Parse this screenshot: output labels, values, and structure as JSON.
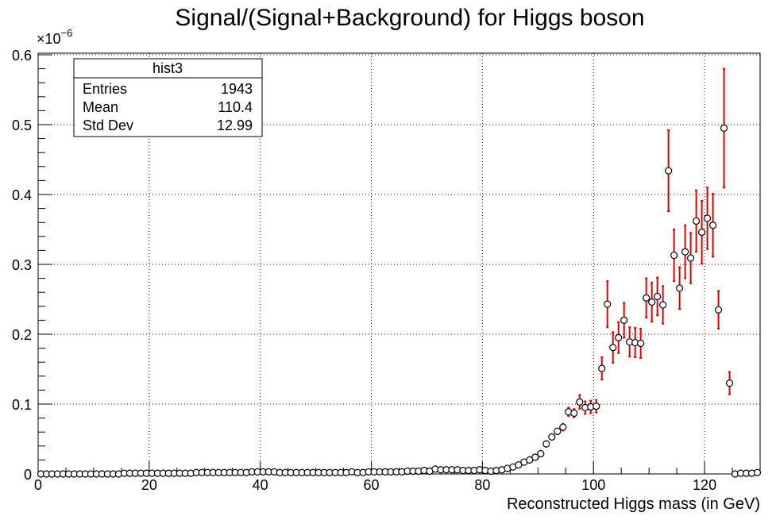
{
  "chart_data": {
    "type": "scatter",
    "title": "Signal/(Signal+Background) for Higgs boson",
    "xlabel": "Reconstructed Higgs mass (in GeV)",
    "ylabel": "",
    "y_exponent_label": "×10",
    "y_exponent_power": "−6",
    "xlim": [
      0,
      130
    ],
    "ylim": [
      0,
      0.61
    ],
    "x_ticks": [
      0,
      20,
      40,
      60,
      80,
      100,
      120
    ],
    "y_ticks": [
      0,
      0.1,
      0.2,
      0.3,
      0.4,
      0.5,
      0.6
    ],
    "x_tick_labels": [
      "0",
      "20",
      "40",
      "60",
      "80",
      "100",
      "120"
    ],
    "y_tick_labels": [
      "0",
      "0.1",
      "0.2",
      "0.3",
      "0.4",
      "0.5",
      "0.6"
    ],
    "grid": true,
    "marker_color": "#000000",
    "error_bar_color": "#dd0000",
    "stats_box": {
      "title": "hist3",
      "placement": "top-left",
      "rows": [
        {
          "label": "Entries",
          "value": "1943"
        },
        {
          "label": "Mean",
          "value": "110.4"
        },
        {
          "label": "Std Dev",
          "value": "12.99"
        }
      ]
    },
    "points": [
      {
        "x": 0.5,
        "y": 0,
        "err": 0
      },
      {
        "x": 1.5,
        "y": 0,
        "err": 0
      },
      {
        "x": 2.5,
        "y": 0,
        "err": 0
      },
      {
        "x": 3.5,
        "y": 0,
        "err": 0
      },
      {
        "x": 4.5,
        "y": 0,
        "err": 0
      },
      {
        "x": 5.5,
        "y": 0,
        "err": 0
      },
      {
        "x": 6.5,
        "y": 0,
        "err": 0
      },
      {
        "x": 7.5,
        "y": 0,
        "err": 0
      },
      {
        "x": 8.5,
        "y": 0,
        "err": 0
      },
      {
        "x": 9.5,
        "y": 0,
        "err": 0
      },
      {
        "x": 10.5,
        "y": 0,
        "err": 0
      },
      {
        "x": 11.5,
        "y": 0,
        "err": 0
      },
      {
        "x": 12.5,
        "y": 0,
        "err": 0
      },
      {
        "x": 13.5,
        "y": 0,
        "err": 0
      },
      {
        "x": 14.5,
        "y": 0,
        "err": 0
      },
      {
        "x": 15.5,
        "y": 0.001,
        "err": 0
      },
      {
        "x": 16.5,
        "y": 0.001,
        "err": 0
      },
      {
        "x": 17.5,
        "y": 0.001,
        "err": 0
      },
      {
        "x": 18.5,
        "y": 0.001,
        "err": 0
      },
      {
        "x": 19.5,
        "y": 0.001,
        "err": 0
      },
      {
        "x": 20.5,
        "y": 0.001,
        "err": 0
      },
      {
        "x": 21.5,
        "y": 0.001,
        "err": 0
      },
      {
        "x": 22.5,
        "y": 0.001,
        "err": 0
      },
      {
        "x": 23.5,
        "y": 0.001,
        "err": 0
      },
      {
        "x": 24.5,
        "y": 0.001,
        "err": 0
      },
      {
        "x": 25.5,
        "y": 0.001,
        "err": 0
      },
      {
        "x": 26.5,
        "y": 0.001,
        "err": 0
      },
      {
        "x": 27.5,
        "y": 0.001,
        "err": 0
      },
      {
        "x": 28.5,
        "y": 0.002,
        "err": 0
      },
      {
        "x": 29.5,
        "y": 0.002,
        "err": 0
      },
      {
        "x": 30.5,
        "y": 0.002,
        "err": 0
      },
      {
        "x": 31.5,
        "y": 0.002,
        "err": 0
      },
      {
        "x": 32.5,
        "y": 0.002,
        "err": 0
      },
      {
        "x": 33.5,
        "y": 0.002,
        "err": 0
      },
      {
        "x": 34.5,
        "y": 0.002,
        "err": 0
      },
      {
        "x": 35.5,
        "y": 0.002,
        "err": 0
      },
      {
        "x": 36.5,
        "y": 0.002,
        "err": 0
      },
      {
        "x": 37.5,
        "y": 0.002,
        "err": 0
      },
      {
        "x": 38.5,
        "y": 0.003,
        "err": 0
      },
      {
        "x": 39.5,
        "y": 0.003,
        "err": 0
      },
      {
        "x": 40.5,
        "y": 0.003,
        "err": 0
      },
      {
        "x": 41.5,
        "y": 0.003,
        "err": 0
      },
      {
        "x": 42.5,
        "y": 0.003,
        "err": 0
      },
      {
        "x": 43.5,
        "y": 0.002,
        "err": 0
      },
      {
        "x": 44.5,
        "y": 0.002,
        "err": 0
      },
      {
        "x": 45.5,
        "y": 0.002,
        "err": 0
      },
      {
        "x": 46.5,
        "y": 0.002,
        "err": 0
      },
      {
        "x": 47.5,
        "y": 0.002,
        "err": 0
      },
      {
        "x": 48.5,
        "y": 0.002,
        "err": 0
      },
      {
        "x": 49.5,
        "y": 0.002,
        "err": 0
      },
      {
        "x": 50.5,
        "y": 0.002,
        "err": 0
      },
      {
        "x": 51.5,
        "y": 0.002,
        "err": 0
      },
      {
        "x": 52.5,
        "y": 0.002,
        "err": 0
      },
      {
        "x": 53.5,
        "y": 0.002,
        "err": 0
      },
      {
        "x": 54.5,
        "y": 0.002,
        "err": 0
      },
      {
        "x": 55.5,
        "y": 0.002,
        "err": 0
      },
      {
        "x": 56.5,
        "y": 0.003,
        "err": 0
      },
      {
        "x": 57.5,
        "y": 0.002,
        "err": 0
      },
      {
        "x": 58.5,
        "y": 0.002,
        "err": 0
      },
      {
        "x": 59.5,
        "y": 0.003,
        "err": 0
      },
      {
        "x": 60.5,
        "y": 0.003,
        "err": 0
      },
      {
        "x": 61.5,
        "y": 0.003,
        "err": 0
      },
      {
        "x": 62.5,
        "y": 0.003,
        "err": 0
      },
      {
        "x": 63.5,
        "y": 0.003,
        "err": 0
      },
      {
        "x": 64.5,
        "y": 0.003,
        "err": 0
      },
      {
        "x": 65.5,
        "y": 0.003,
        "err": 0
      },
      {
        "x": 66.5,
        "y": 0.004,
        "err": 0
      },
      {
        "x": 67.5,
        "y": 0.004,
        "err": 0
      },
      {
        "x": 68.5,
        "y": 0.004,
        "err": 0
      },
      {
        "x": 69.5,
        "y": 0.005,
        "err": 0
      },
      {
        "x": 70.5,
        "y": 0.004,
        "err": 0
      },
      {
        "x": 71.5,
        "y": 0.007,
        "err": 0
      },
      {
        "x": 72.5,
        "y": 0.006,
        "err": 0
      },
      {
        "x": 73.5,
        "y": 0.006,
        "err": 0
      },
      {
        "x": 74.5,
        "y": 0.006,
        "err": 0
      },
      {
        "x": 75.5,
        "y": 0.006,
        "err": 0
      },
      {
        "x": 76.5,
        "y": 0.005,
        "err": 0
      },
      {
        "x": 77.5,
        "y": 0.005,
        "err": 0
      },
      {
        "x": 78.5,
        "y": 0.005,
        "err": 0
      },
      {
        "x": 79.5,
        "y": 0.006,
        "err": 0
      },
      {
        "x": 80.5,
        "y": 0.005,
        "err": 0
      },
      {
        "x": 81.5,
        "y": 0.004,
        "err": 0
      },
      {
        "x": 82.5,
        "y": 0.005,
        "err": 0
      },
      {
        "x": 83.5,
        "y": 0.006,
        "err": 0
      },
      {
        "x": 84.5,
        "y": 0.008,
        "err": 0
      },
      {
        "x": 85.5,
        "y": 0.01,
        "err": 0
      },
      {
        "x": 86.5,
        "y": 0.013,
        "err": 0
      },
      {
        "x": 87.5,
        "y": 0.017,
        "err": 0
      },
      {
        "x": 88.5,
        "y": 0.02,
        "err": 0
      },
      {
        "x": 89.5,
        "y": 0.024,
        "err": 0
      },
      {
        "x": 90.5,
        "y": 0.029,
        "err": 0
      },
      {
        "x": 91.5,
        "y": 0.043,
        "err": 0.003
      },
      {
        "x": 92.5,
        "y": 0.053,
        "err": 0.003
      },
      {
        "x": 93.5,
        "y": 0.061,
        "err": 0.004
      },
      {
        "x": 94.5,
        "y": 0.067,
        "err": 0.005
      },
      {
        "x": 95.5,
        "y": 0.089,
        "err": 0.006
      },
      {
        "x": 96.5,
        "y": 0.087,
        "err": 0.006
      },
      {
        "x": 97.5,
        "y": 0.103,
        "err": 0.01
      },
      {
        "x": 98.5,
        "y": 0.095,
        "err": 0.009
      },
      {
        "x": 99.5,
        "y": 0.096,
        "err": 0.009
      },
      {
        "x": 100.5,
        "y": 0.097,
        "err": 0.009
      },
      {
        "x": 101.5,
        "y": 0.151,
        "err": 0.016
      },
      {
        "x": 102.5,
        "y": 0.243,
        "err": 0.033
      },
      {
        "x": 103.5,
        "y": 0.181,
        "err": 0.022
      },
      {
        "x": 104.5,
        "y": 0.195,
        "err": 0.022
      },
      {
        "x": 105.5,
        "y": 0.22,
        "err": 0.025
      },
      {
        "x": 106.5,
        "y": 0.189,
        "err": 0.021
      },
      {
        "x": 107.5,
        "y": 0.188,
        "err": 0.021
      },
      {
        "x": 108.5,
        "y": 0.187,
        "err": 0.021
      },
      {
        "x": 109.5,
        "y": 0.252,
        "err": 0.028
      },
      {
        "x": 110.5,
        "y": 0.246,
        "err": 0.028
      },
      {
        "x": 111.5,
        "y": 0.254,
        "err": 0.027
      },
      {
        "x": 112.5,
        "y": 0.242,
        "err": 0.027
      },
      {
        "x": 113.5,
        "y": 0.434,
        "err": 0.058
      },
      {
        "x": 114.5,
        "y": 0.313,
        "err": 0.037
      },
      {
        "x": 115.5,
        "y": 0.266,
        "err": 0.03
      },
      {
        "x": 116.5,
        "y": 0.318,
        "err": 0.038
      },
      {
        "x": 117.5,
        "y": 0.309,
        "err": 0.036
      },
      {
        "x": 118.5,
        "y": 0.362,
        "err": 0.044
      },
      {
        "x": 119.5,
        "y": 0.346,
        "err": 0.045
      },
      {
        "x": 120.5,
        "y": 0.366,
        "err": 0.044
      },
      {
        "x": 121.5,
        "y": 0.356,
        "err": 0.045
      },
      {
        "x": 122.5,
        "y": 0.235,
        "err": 0.027
      },
      {
        "x": 123.5,
        "y": 0.495,
        "err": 0.085
      },
      {
        "x": 124.5,
        "y": 0.13,
        "err": 0.016
      },
      {
        "x": 125.5,
        "y": 0,
        "err": 0
      },
      {
        "x": 126.5,
        "y": 0.001,
        "err": 0
      },
      {
        "x": 127.5,
        "y": 0.001,
        "err": 0
      },
      {
        "x": 128.5,
        "y": 0.001,
        "err": 0
      },
      {
        "x": 129.5,
        "y": 0.002,
        "err": 0
      }
    ]
  }
}
